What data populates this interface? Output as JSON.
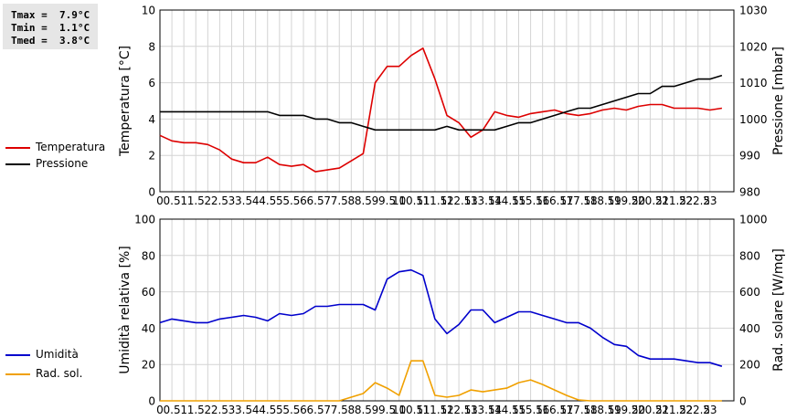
{
  "stats": {
    "tmax": "Tmax =  7.9°C",
    "tmin": "Tmin =  1.1°C",
    "tmed": "Tmed =  3.8°C"
  },
  "chart_data": [
    {
      "type": "line",
      "xlabel": "",
      "xlim": [
        0,
        24
      ],
      "x_ticks": [
        "0",
        "0.5",
        "1",
        "1.5",
        "2",
        "2.5",
        "3",
        "3.5",
        "4",
        "4.5",
        "5",
        "5.5",
        "6",
        "6.5",
        "7",
        "7.5",
        "8",
        "8.5",
        "9",
        "9.5",
        "10",
        "10.5",
        "11",
        "11.5",
        "12",
        "12.5",
        "13",
        "13.5",
        "14",
        "14.5",
        "15",
        "15.5",
        "16",
        "16.5",
        "17",
        "17.5",
        "18",
        "18.5",
        "19",
        "19.5",
        "20",
        "20.5",
        "21",
        "21.5",
        "22",
        "22.5",
        "23"
      ],
      "y_left": {
        "label": "Temperatura [°C]",
        "lim": [
          0,
          10
        ],
        "ticks": [
          "0",
          "2",
          "4",
          "6",
          "8",
          "10"
        ]
      },
      "y_right": {
        "label": "Pressione [mbar]",
        "lim": [
          980,
          1030
        ],
        "ticks": [
          "980",
          "990",
          "1000",
          "1010",
          "1020",
          "1030"
        ]
      },
      "grid": true,
      "legend": "left",
      "series": [
        {
          "name": "Temperatura",
          "axis": "left",
          "color": "#dd0000",
          "x": [
            0,
            0.5,
            1,
            1.5,
            2,
            2.5,
            3,
            3.5,
            4,
            4.5,
            5,
            5.5,
            6,
            6.5,
            7,
            7.5,
            8,
            8.5,
            9,
            9.5,
            10,
            10.5,
            11,
            11.5,
            12,
            12.5,
            13,
            13.5,
            14,
            14.5,
            15,
            15.5,
            16,
            16.5,
            17,
            17.5,
            18,
            18.5,
            19,
            19.5,
            20,
            20.5,
            21,
            21.5,
            22,
            22.5,
            23,
            23.5
          ],
          "y": [
            3.1,
            2.8,
            2.7,
            2.7,
            2.6,
            2.3,
            1.8,
            1.6,
            1.6,
            1.9,
            1.5,
            1.4,
            1.5,
            1.1,
            1.2,
            1.3,
            1.7,
            2.1,
            6.0,
            6.9,
            6.9,
            7.5,
            7.9,
            6.2,
            4.2,
            3.8,
            3.0,
            3.4,
            4.4,
            4.2,
            4.1,
            4.3,
            4.4,
            4.5,
            4.3,
            4.2,
            4.3,
            4.5,
            4.6,
            4.5,
            4.7,
            4.8,
            4.8,
            4.6,
            4.6,
            4.6,
            4.5,
            4.6
          ]
        },
        {
          "name": "Pressione",
          "axis": "right",
          "color": "#000000",
          "x": [
            0,
            0.5,
            1,
            1.5,
            2,
            2.5,
            3,
            3.5,
            4,
            4.5,
            5,
            5.5,
            6,
            6.5,
            7,
            7.5,
            8,
            8.5,
            9,
            9.5,
            10,
            10.5,
            11,
            11.5,
            12,
            12.5,
            13,
            13.5,
            14,
            14.5,
            15,
            15.5,
            16,
            16.5,
            17,
            17.5,
            18,
            18.5,
            19,
            19.5,
            20,
            20.5,
            21,
            21.5,
            22,
            22.5,
            23,
            23.5
          ],
          "y": [
            1002,
            1002,
            1002,
            1002,
            1002,
            1002,
            1002,
            1002,
            1002,
            1002,
            1001,
            1001,
            1001,
            1000,
            1000,
            999,
            999,
            998,
            997,
            997,
            997,
            997,
            997,
            997,
            998,
            997,
            997,
            997,
            997,
            998,
            999,
            999,
            1000,
            1001,
            1002,
            1003,
            1003,
            1004,
            1005,
            1006,
            1007,
            1007,
            1009,
            1009,
            1010,
            1011,
            1011,
            1012
          ]
        }
      ]
    },
    {
      "type": "line",
      "xlabel": "",
      "xlim": [
        0,
        24
      ],
      "x_ticks": [
        "0",
        "0.5",
        "1",
        "1.5",
        "2",
        "2.5",
        "3",
        "3.5",
        "4",
        "4.5",
        "5",
        "5.5",
        "6",
        "6.5",
        "7",
        "7.5",
        "8",
        "8.5",
        "9",
        "9.5",
        "10",
        "10.5",
        "11",
        "11.5",
        "12",
        "12.5",
        "13",
        "13.5",
        "14",
        "14.5",
        "15",
        "15.5",
        "16",
        "16.5",
        "17",
        "17.5",
        "18",
        "18.5",
        "19",
        "19.5",
        "20",
        "20.5",
        "21",
        "21.5",
        "22",
        "22.5",
        "23"
      ],
      "y_left": {
        "label": "Umidità relativa [%]",
        "lim": [
          0,
          100
        ],
        "ticks": [
          "0",
          "20",
          "40",
          "60",
          "80",
          "100"
        ]
      },
      "y_right": {
        "label": "Rad. solare [W/mq]",
        "lim": [
          0,
          1000
        ],
        "ticks": [
          "0",
          "200",
          "400",
          "600",
          "800",
          "1000"
        ]
      },
      "grid": true,
      "legend": "left",
      "series": [
        {
          "name": "Umidità",
          "axis": "left",
          "color": "#0000cc",
          "x": [
            0,
            0.5,
            1,
            1.5,
            2,
            2.5,
            3,
            3.5,
            4,
            4.5,
            5,
            5.5,
            6,
            6.5,
            7,
            7.5,
            8,
            8.5,
            9,
            9.5,
            10,
            10.5,
            11,
            11.5,
            12,
            12.5,
            13,
            13.5,
            14,
            14.5,
            15,
            15.5,
            16,
            16.5,
            17,
            17.5,
            18,
            18.5,
            19,
            19.5,
            20,
            20.5,
            21,
            21.5,
            22,
            22.5,
            23,
            23.5
          ],
          "y": [
            43,
            45,
            44,
            43,
            43,
            45,
            46,
            47,
            46,
            44,
            48,
            47,
            48,
            52,
            52,
            53,
            53,
            53,
            50,
            67,
            71,
            72,
            69,
            45,
            37,
            42,
            50,
            50,
            43,
            46,
            49,
            49,
            47,
            45,
            43,
            43,
            40,
            35,
            31,
            30,
            25,
            23,
            23,
            23,
            22,
            21,
            21,
            19
          ]
        },
        {
          "name": "Rad. sol.",
          "axis": "right",
          "color": "#f0a000",
          "x": [
            0,
            0.5,
            1,
            1.5,
            2,
            2.5,
            3,
            3.5,
            4,
            4.5,
            5,
            5.5,
            6,
            6.5,
            7,
            7.5,
            8,
            8.5,
            9,
            9.5,
            10,
            10.5,
            11,
            11.5,
            12,
            12.5,
            13,
            13.5,
            14,
            14.5,
            15,
            15.5,
            16,
            16.5,
            17,
            17.5,
            18,
            18.5,
            19,
            19.5,
            20,
            20.5,
            21,
            21.5,
            22,
            22.5,
            23,
            23.5
          ],
          "y": [
            0,
            0,
            0,
            0,
            0,
            0,
            0,
            0,
            0,
            0,
            0,
            0,
            0,
            0,
            0,
            0,
            20,
            40,
            100,
            70,
            30,
            220,
            220,
            30,
            20,
            30,
            60,
            50,
            60,
            70,
            100,
            115,
            90,
            60,
            30,
            5,
            0,
            0,
            0,
            0,
            0,
            0,
            0,
            0,
            0,
            0,
            0,
            0
          ]
        }
      ]
    }
  ]
}
